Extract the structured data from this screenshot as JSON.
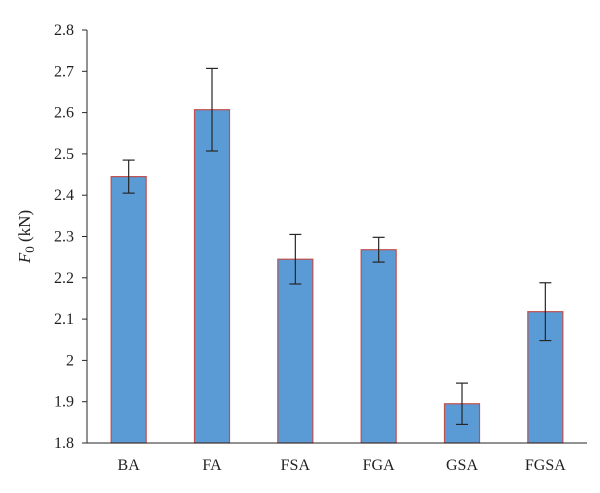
{
  "chart_data": {
    "type": "bar",
    "title": "",
    "xlabel": "",
    "ylabel": {
      "symbol": "F",
      "subscript": "0",
      "unit": " (kN)"
    },
    "categories": [
      "BA",
      "FA",
      "FSA",
      "FGA",
      "GSA",
      "FGSA"
    ],
    "series": [
      {
        "values": [
          2.445,
          2.607,
          2.245,
          2.268,
          1.895,
          2.118
        ],
        "errors": [
          0.04,
          0.1,
          0.06,
          0.03,
          0.05,
          0.07
        ]
      }
    ],
    "ylim": [
      1.8,
      2.8
    ],
    "yticks": [
      1.8,
      1.9,
      2.0,
      2.1,
      2.2,
      2.3,
      2.4,
      2.5,
      2.6,
      2.7,
      2.8
    ],
    "ytick_labels": [
      "1.8",
      "1.9",
      "2",
      "2.1",
      "2.2",
      "2.3",
      "2.4",
      "2.5",
      "2.6",
      "2.7",
      "2.8"
    ],
    "grid": false,
    "legend": "none",
    "colors": {
      "bar_fill": "#5b9bd5",
      "bar_edge": "#c0504d",
      "axis": "#262626",
      "error_bar": "#262626",
      "text": "#222222"
    }
  }
}
